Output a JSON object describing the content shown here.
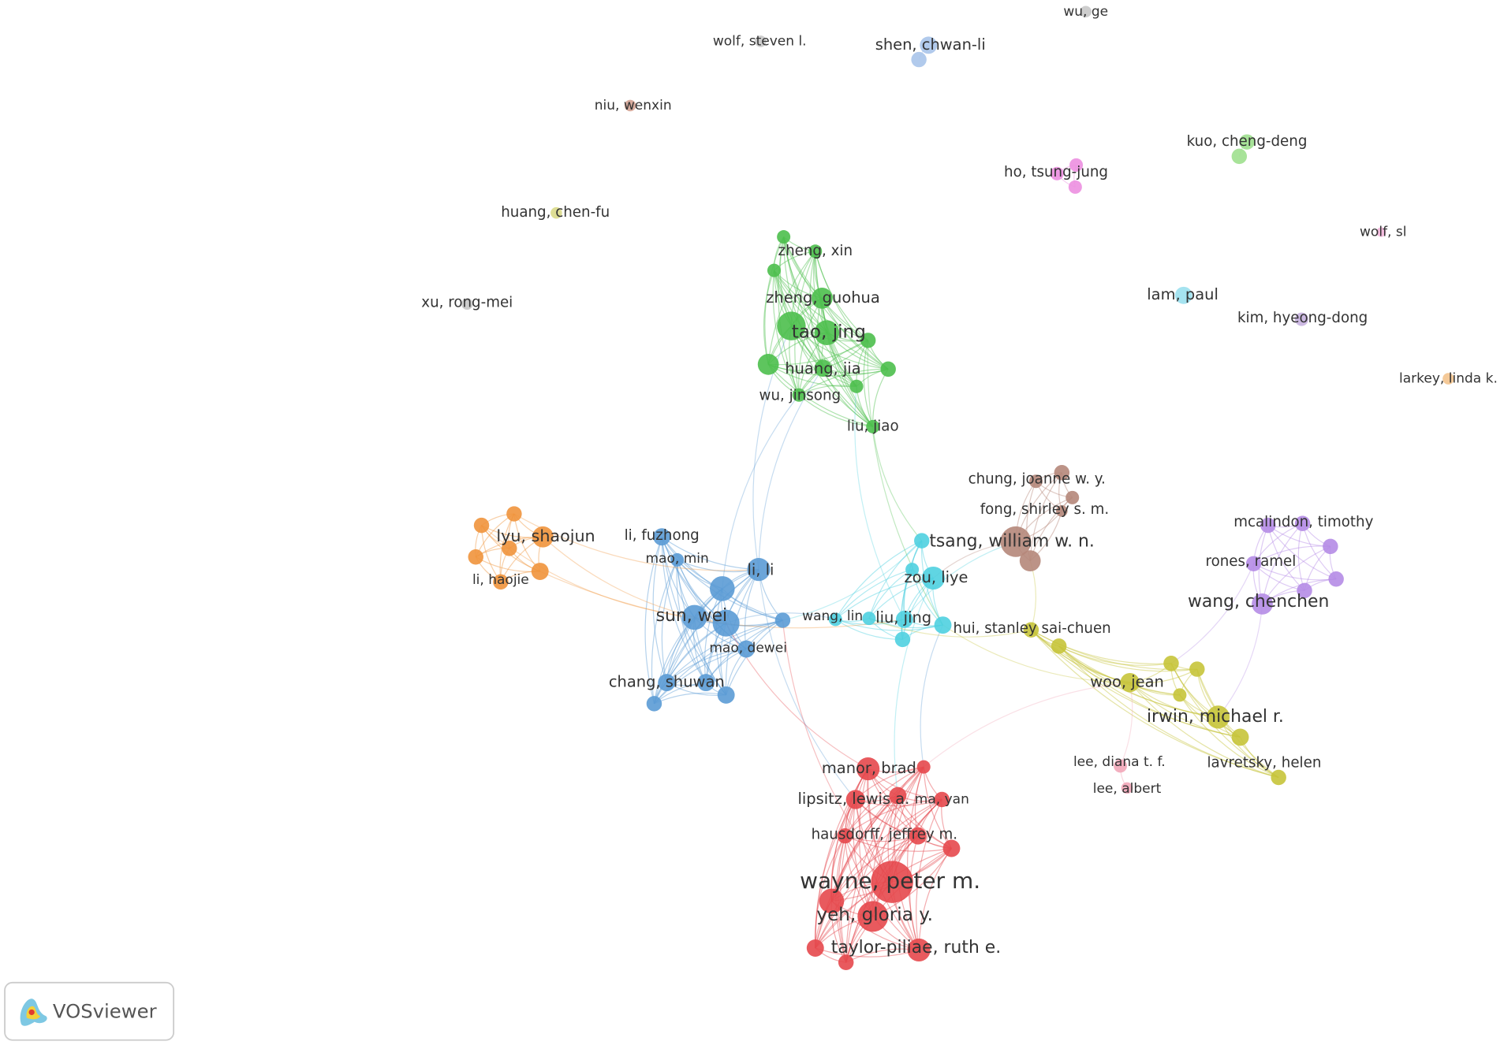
{
  "labels": [
    "wu, ge",
    "wolf, steven l.",
    "shen, chwan-li",
    "niu, wenxin",
    "kuo, cheng-deng",
    "ho, tsung-jung",
    "huang, chen-fu",
    "wolf, sl",
    "zheng, xin",
    "lam, paul",
    "xu, rong-mei",
    "zheng, guohua",
    "kim, hyeong-dong",
    "tao, jing",
    "huang, jia",
    "larkey, linda k.",
    "wu, jinsong",
    "liu, jiao",
    "chung, joanne w. y.",
    "fong, shirley s. m.",
    "mcalindon, timothy",
    "li, fuzhong",
    "lyu, shaojun",
    "tsang, william w. n.",
    "mao, min",
    "rones, ramel",
    "li, li",
    "zou, liye",
    "li, haojie",
    "wang, chenchen",
    "sun, wei",
    "wang, lin",
    "liu, jing",
    "hui, stanley sai-chuen",
    "mao, dewei",
    "chang, shuwan",
    "woo, jean",
    "irwin, michael r.",
    "lee, diana t. f.",
    "lavretsky, helen",
    "manor, brad",
    "lipsitz, lewis a.",
    "ma, yan",
    "lee, albert",
    "hausdorff, jeffrey m.",
    "wayne, peter m.",
    "yeh, gloria y.",
    "taylor-piliae, ruth e."
  ],
  "logo": "VOSviewer"
}
